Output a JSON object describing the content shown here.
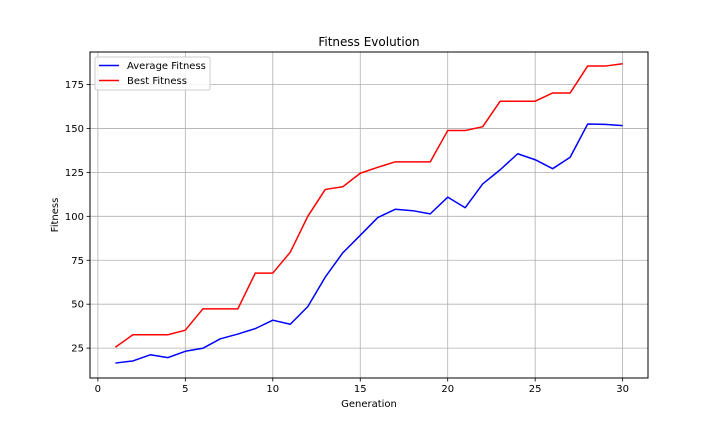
{
  "chart_data": {
    "type": "line",
    "title": "Fitness Evolution",
    "xlabel": "Generation",
    "ylabel": "Fitness",
    "xlim": [
      -0.45,
      31.45
    ],
    "ylim": [
      8,
      193.5
    ],
    "xticks": [
      0,
      5,
      10,
      15,
      20,
      25,
      30
    ],
    "yticks": [
      25,
      50,
      75,
      100,
      125,
      150,
      175
    ],
    "grid": true,
    "legend_position": "top-left",
    "x": [
      1,
      2,
      3,
      4,
      5,
      6,
      7,
      8,
      9,
      10,
      11,
      12,
      13,
      14,
      15,
      16,
      17,
      18,
      19,
      20,
      21,
      22,
      23,
      24,
      25,
      26,
      27,
      28,
      29,
      30
    ],
    "series": [
      {
        "name": "Average Fitness",
        "color": "#0000ff",
        "values": [
          16.5,
          17.7,
          21.2,
          19.6,
          23.2,
          24.9,
          30.3,
          33.0,
          36.1,
          40.9,
          38.6,
          48.6,
          65.4,
          79.2,
          89.2,
          99.3,
          104.0,
          103.2,
          101.4,
          110.9,
          104.9,
          118.4,
          126.5,
          135.6,
          132.2,
          127.1,
          133.6,
          152.5,
          152.3,
          151.6
        ],
        "label_key": "legend.average"
      },
      {
        "name": "Best Fitness",
        "color": "#ff0000",
        "values": [
          25.5,
          32.6,
          32.6,
          32.6,
          35.2,
          47.3,
          47.3,
          47.3,
          67.7,
          67.7,
          79.6,
          100.0,
          115.3,
          116.8,
          124.5,
          127.9,
          131.0,
          131.0,
          131.0,
          148.8,
          148.8,
          151.0,
          165.5,
          165.5,
          165.5,
          170.2,
          170.2,
          185.5,
          185.5,
          186.8
        ],
        "label_key": "legend.best"
      }
    ]
  },
  "legend": {
    "average": "Average Fitness",
    "best": "Best Fitness"
  }
}
